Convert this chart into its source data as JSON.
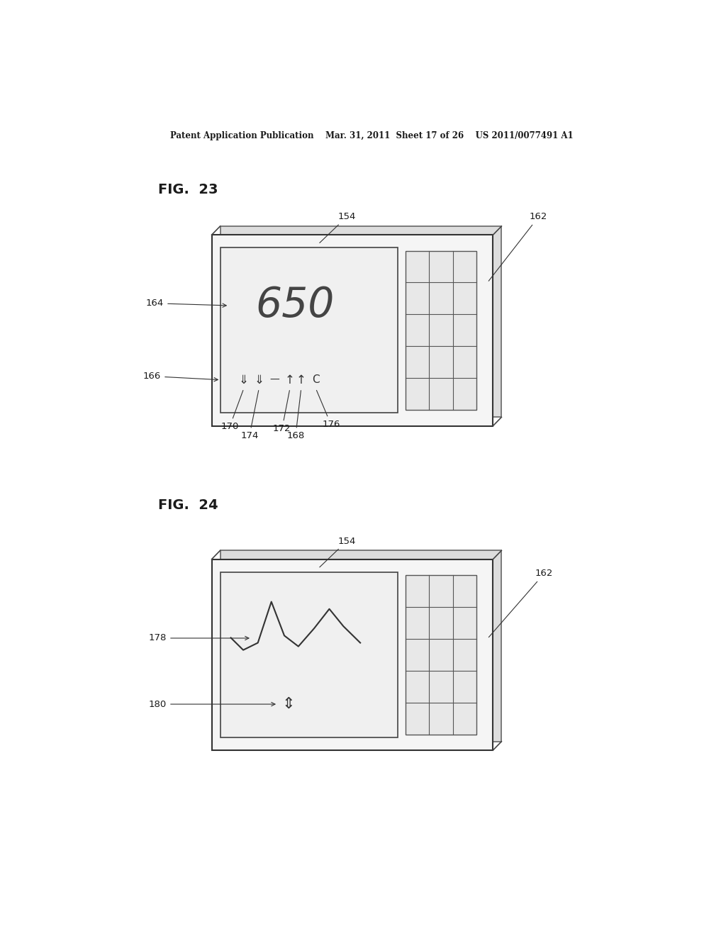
{
  "bg_color": "#ffffff",
  "header_text": "Patent Application Publication    Mar. 31, 2011  Sheet 17 of 26    US 2011/0077491 A1",
  "fig23_label": "FIG.  23",
  "fig24_label": "FIG.  24"
}
